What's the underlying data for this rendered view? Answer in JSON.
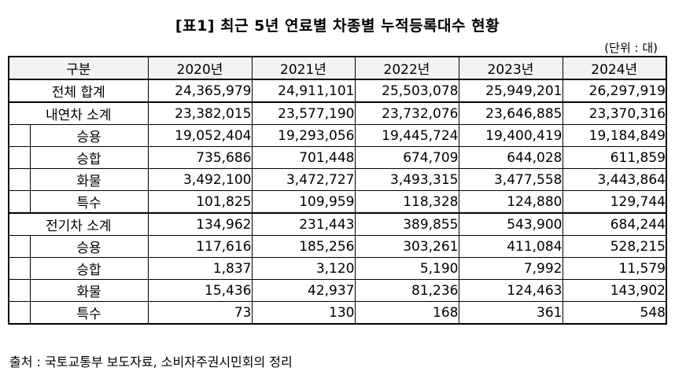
{
  "title": "[표1] 최근 5년 연료별 차종별 누적등록대수 현황",
  "unit": "(단위 : 대)",
  "table": {
    "header_label": "구분",
    "years": [
      "2020년",
      "2021년",
      "2022년",
      "2023년",
      "2024년"
    ],
    "total": {
      "label": "전체 합계",
      "values": [
        "24,365,979",
        "24,911,101",
        "25,503,078",
        "25,949,201",
        "26,297,919"
      ]
    },
    "ice": {
      "label": "내연차 소계",
      "values": [
        "23,382,015",
        "23,577,190",
        "23,732,076",
        "23,646,885",
        "23,370,316"
      ],
      "rows": [
        {
          "label": "승용",
          "values": [
            "19,052,404",
            "19,293,056",
            "19,445,724",
            "19,400,419",
            "19,184,849"
          ]
        },
        {
          "label": "승합",
          "values": [
            "735,686",
            "701,448",
            "674,709",
            "644,028",
            "611,859"
          ]
        },
        {
          "label": "화물",
          "values": [
            "3,492,100",
            "3,472,727",
            "3,493,315",
            "3,477,558",
            "3,443,864"
          ]
        },
        {
          "label": "특수",
          "values": [
            "101,825",
            "109,959",
            "118,328",
            "124,880",
            "129,744"
          ]
        }
      ]
    },
    "ev": {
      "label": "전기차 소계",
      "values": [
        "134,962",
        "231,443",
        "389,855",
        "543,900",
        "684,244"
      ],
      "rows": [
        {
          "label": "승용",
          "values": [
            "117,616",
            "185,256",
            "303,261",
            "411,084",
            "528,215"
          ]
        },
        {
          "label": "승합",
          "values": [
            "1,837",
            "3,120",
            "5,190",
            "7,992",
            "11,579"
          ]
        },
        {
          "label": "화물",
          "values": [
            "15,436",
            "42,937",
            "81,236",
            "124,463",
            "143,902"
          ]
        },
        {
          "label": "특수",
          "values": [
            "73",
            "130",
            "168",
            "361",
            "548"
          ]
        }
      ]
    }
  },
  "source": "출처 : 국토교통부 보도자료, 소비자주권시민회의 정리"
}
